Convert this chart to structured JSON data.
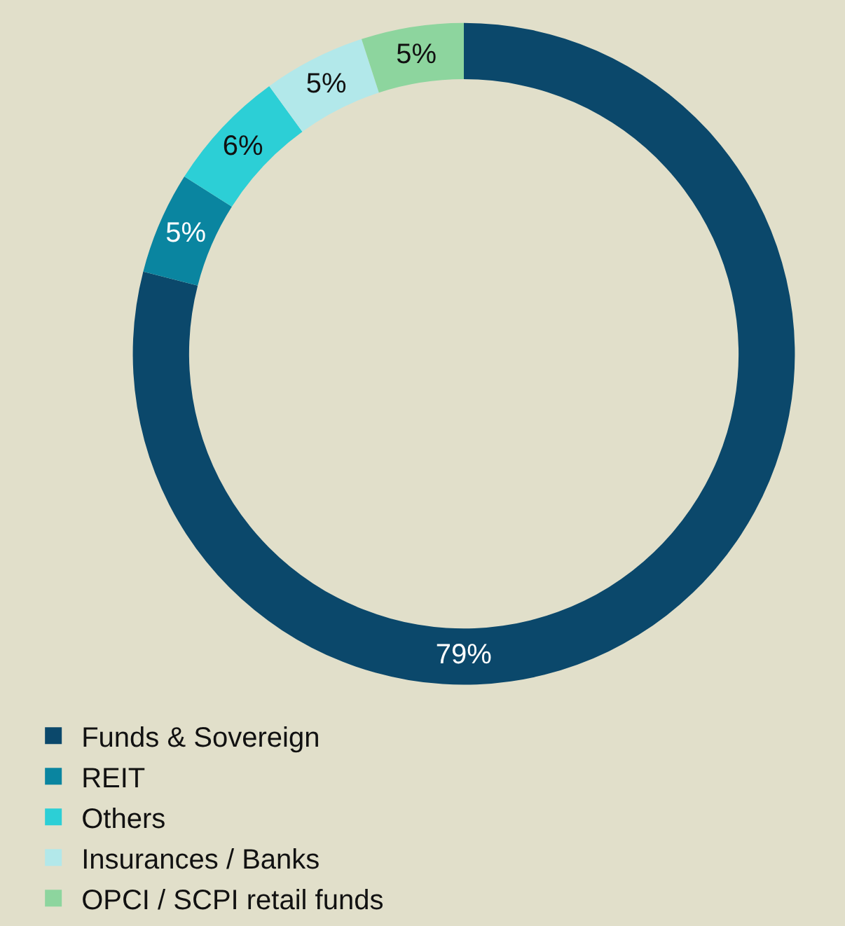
{
  "chart_data": {
    "type": "donut",
    "categories": [
      "Funds & Sovereign",
      "REIT",
      "Others",
      "Insurances / Banks",
      "OPCI / SCPI retail funds"
    ],
    "values": [
      79,
      5,
      6,
      5,
      5
    ],
    "colors": [
      "#0b486b",
      "#0a85a0",
      "#2ccfd6",
      "#b2e8ea",
      "#8dd59e"
    ],
    "value_labels": [
      "79%",
      "5%",
      "6%",
      "5%",
      "5%"
    ],
    "legend": "bottom"
  }
}
